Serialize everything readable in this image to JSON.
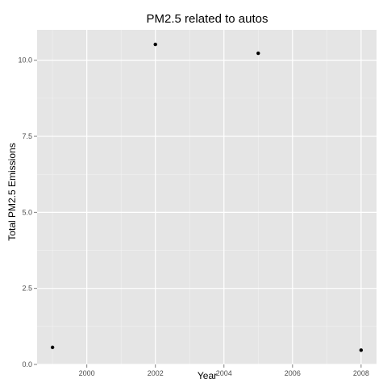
{
  "chart_data": {
    "type": "scatter",
    "title": "PM2.5 related to autos",
    "xlabel": "Year",
    "ylabel": "Total PM2.5 Emissions",
    "xlim": [
      1998.55,
      2008.45
    ],
    "ylim": [
      0,
      11.0
    ],
    "x_ticks": [
      2000,
      2002,
      2004,
      2006,
      2008
    ],
    "x_tick_labels": [
      "2000",
      "2002",
      "2004",
      "2006",
      "2008"
    ],
    "y_ticks": [
      0,
      2.5,
      5,
      7.5,
      10
    ],
    "y_tick_labels": [
      "0.0",
      "2.5",
      "5.0",
      "7.5",
      "10.0"
    ],
    "grid": true,
    "colors": {
      "panel": "#e5e5e5",
      "grid_major": "#ffffff",
      "grid_minor": "#f2f2f2",
      "point": "#000000"
    },
    "points": [
      {
        "x": 1999,
        "y": 0.56
      },
      {
        "x": 2002,
        "y": 10.52
      },
      {
        "x": 2005,
        "y": 10.23
      },
      {
        "x": 2008,
        "y": 0.47
      }
    ]
  }
}
